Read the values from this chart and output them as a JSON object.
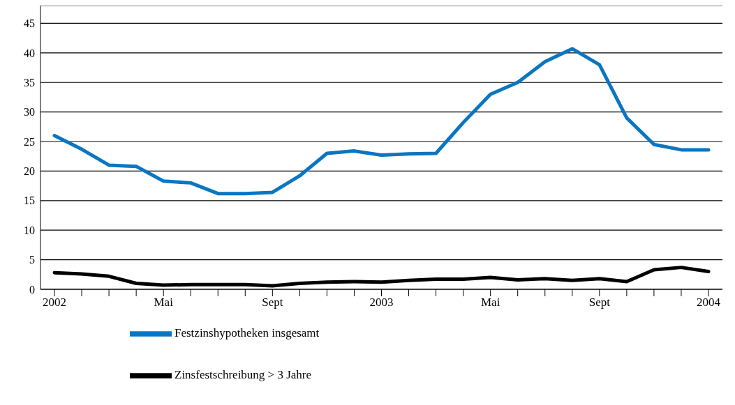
{
  "chart_data": {
    "type": "line",
    "categories": [
      "2002",
      null,
      null,
      null,
      "Mai",
      null,
      null,
      null,
      "Sept",
      null,
      null,
      null,
      "2003",
      null,
      null,
      null,
      "Mai",
      null,
      null,
      null,
      "Sept",
      null,
      null,
      null,
      "2004"
    ],
    "series": [
      {
        "name": "Festzinshypotheken insgesamt",
        "color": "#0a76c2",
        "values": [
          26.0,
          23.7,
          21.0,
          20.8,
          18.3,
          18.0,
          16.2,
          16.2,
          16.4,
          19.2,
          23.0,
          23.4,
          22.7,
          22.9,
          23.0,
          28.2,
          33.0,
          35.0,
          38.5,
          40.7,
          38.0,
          29.0,
          24.5,
          23.6,
          23.6
        ]
      },
      {
        "name": "Zinsfestschreibung > 3 Jahre",
        "color": "#000000",
        "values": [
          2.8,
          2.6,
          2.2,
          1.0,
          0.7,
          0.8,
          0.8,
          0.8,
          0.6,
          1.0,
          1.2,
          1.3,
          1.2,
          1.5,
          1.7,
          1.7,
          2.0,
          1.6,
          1.8,
          1.5,
          1.8,
          1.3,
          3.3,
          3.7,
          3.0
        ]
      }
    ],
    "ylim": [
      0,
      48
    ],
    "yticks": [
      0,
      5,
      10,
      15,
      20,
      25,
      30,
      35,
      40,
      45
    ],
    "grid": "y",
    "legend": "bottom",
    "marker": "none",
    "line_style": "solid"
  }
}
